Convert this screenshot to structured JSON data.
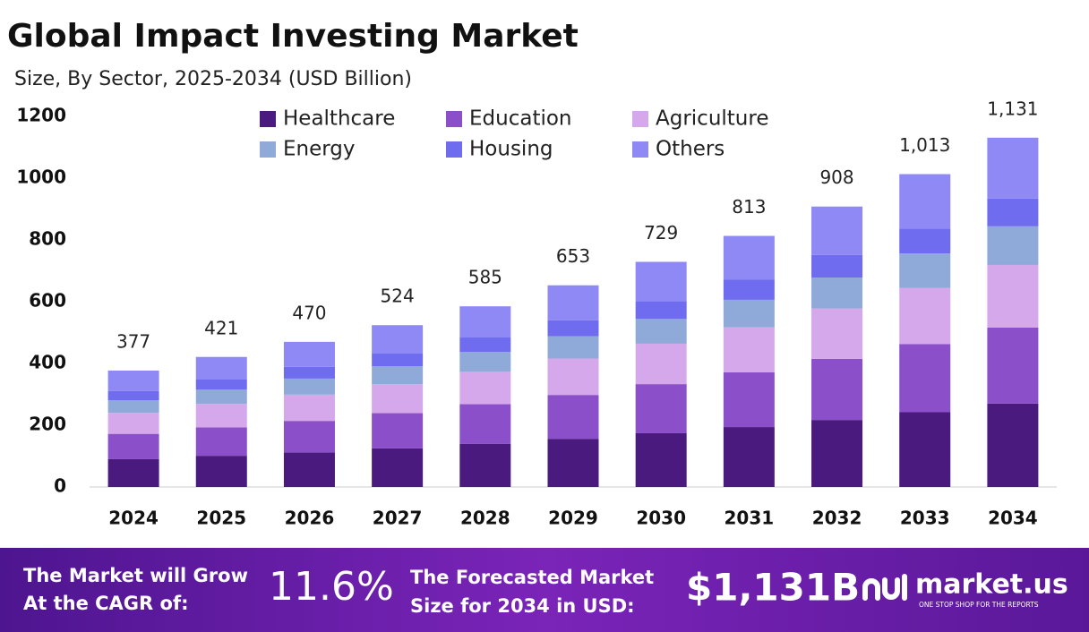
{
  "chart_data": {
    "type": "stacked_bar",
    "title": "Global Impact Investing Market",
    "subtitle": "Size, By Sector, 2025-2034 (USD Billion)",
    "categories": [
      "2024",
      "2025",
      "2026",
      "2027",
      "2028",
      "2029",
      "2030",
      "2031",
      "2032",
      "2033",
      "2034"
    ],
    "series": [
      {
        "name": "Healthcare",
        "color": "#4b1a7e",
        "values": [
          90,
          101,
          112,
          125,
          140,
          156,
          174,
          194,
          217,
          242,
          270
        ]
      },
      {
        "name": "Education",
        "color": "#8b4fc9",
        "values": [
          82,
          92,
          102,
          114,
          128,
          142,
          159,
          177,
          198,
          221,
          246
        ]
      },
      {
        "name": "Agriculture",
        "color": "#d4a8ea",
        "values": [
          68,
          76,
          85,
          94,
          105,
          118,
          131,
          146,
          163,
          182,
          203
        ]
      },
      {
        "name": "Energy",
        "color": "#8fa9d8",
        "values": [
          41,
          46,
          52,
          58,
          64,
          72,
          80,
          89,
          100,
          111,
          125
        ]
      },
      {
        "name": "Housing",
        "color": "#6f6cf0",
        "values": [
          30,
          34,
          38,
          42,
          47,
          52,
          58,
          65,
          73,
          81,
          90
        ]
      },
      {
        "name": "Others",
        "color": "#8e89f5",
        "values": [
          66,
          72,
          81,
          91,
          101,
          113,
          127,
          142,
          157,
          176,
          197
        ]
      }
    ],
    "totals": {
      "values": [
        377,
        421,
        470,
        524,
        585,
        653,
        729,
        813,
        908,
        1013,
        1131
      ],
      "value_labels": [
        "377",
        "421",
        "470",
        "524",
        "585",
        "653",
        "729",
        "813",
        "908",
        "1,013",
        "1,131"
      ]
    },
    "ylim": [
      0,
      1200
    ],
    "yticks": [
      0,
      200,
      400,
      600,
      800,
      1000,
      1200
    ],
    "grid": false
  },
  "footer": {
    "cagr_text": [
      "The Market will Grow",
      "At the CAGR of:"
    ],
    "cagr_value": "11.6%",
    "forecast_text": [
      "The Forecasted Market",
      "Size for 2034 in USD:"
    ],
    "forecast_value": "$1,131B",
    "brand": "market.us",
    "tagline": "ONE STOP SHOP FOR THE REPORTS"
  }
}
